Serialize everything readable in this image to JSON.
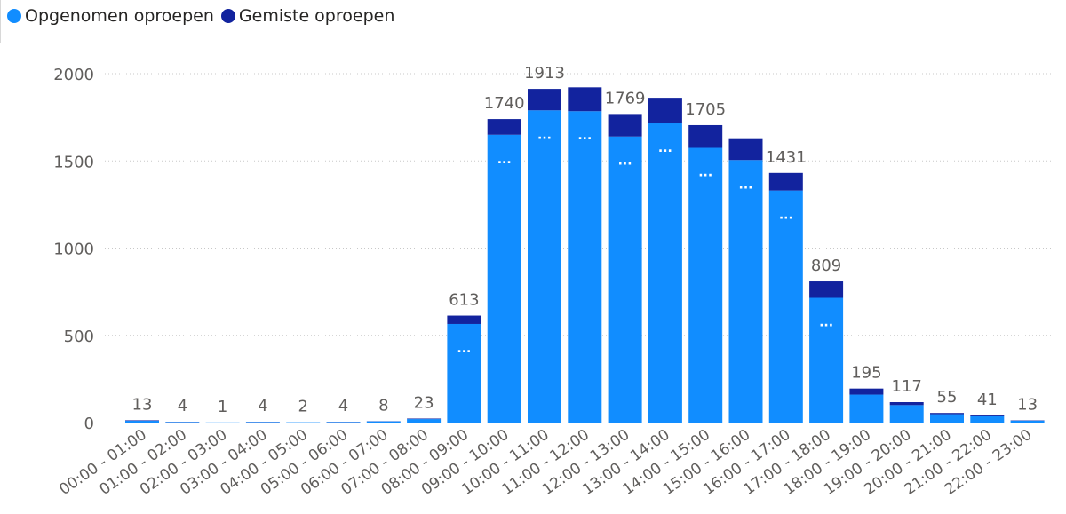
{
  "legend": {
    "items": [
      {
        "label": "Opgenomen oproepen",
        "color": "#118dff"
      },
      {
        "label": "Gemiste oproepen",
        "color": "#12239e"
      }
    ]
  },
  "chart_data": {
    "type": "bar",
    "stacked": true,
    "title": "",
    "xlabel": "",
    "ylabel": "",
    "ylim": [
      0,
      2000
    ],
    "yticks": [
      "0",
      "500",
      "1000",
      "1500",
      "2000"
    ],
    "grid": true,
    "legend_position": "top-left",
    "categories": [
      "00:00 - 01:00",
      "01:00 - 02:00",
      "02:00 - 03:00",
      "03:00 - 04:00",
      "04:00 - 05:00",
      "05:00 - 06:00",
      "06:00 - 07:00",
      "07:00 - 08:00",
      "08:00 - 09:00",
      "09:00 - 10:00",
      "10:00 - 11:00",
      "11:00 - 12:00",
      "12:00 - 13:00",
      "13:00 - 14:00",
      "14:00 - 15:00",
      "15:00 - 16:00",
      "16:00 - 17:00",
      "17:00 - 18:00",
      "18:00 - 19:00",
      "19:00 - 20:00",
      "20:00 - 21:00",
      "21:00 - 22:00",
      "22:00 - 23:00"
    ],
    "series": [
      {
        "name": "Opgenomen oproepen",
        "color": "#118dff",
        "values": [
          10,
          3,
          1,
          3,
          2,
          3,
          7,
          20,
          565,
          1650,
          1790,
          1785,
          1640,
          1715,
          1575,
          1505,
          1330,
          715,
          160,
          100,
          48,
          36,
          11
        ]
      },
      {
        "name": "Gemiste oproepen",
        "color": "#12239e",
        "values": [
          3,
          1,
          0,
          1,
          0,
          1,
          1,
          3,
          48,
          90,
          123,
          137,
          129,
          147,
          130,
          120,
          101,
          94,
          35,
          17,
          7,
          5,
          2
        ]
      }
    ],
    "total_labels": [
      "13",
      "4",
      "1",
      "4",
      "2",
      "4",
      "8",
      "23",
      "613",
      "1740",
      "1913",
      "",
      "1769",
      "",
      "1705",
      "",
      "1431",
      "809",
      "195",
      "117",
      "55",
      "41",
      "13"
    ],
    "inner_labels": [
      "",
      "",
      "",
      "",
      "",
      "",
      "",
      "",
      "...",
      "...",
      "...",
      "...",
      "...",
      "...",
      "...",
      "...",
      "...",
      "...",
      "",
      "",
      "",
      "",
      ""
    ]
  }
}
